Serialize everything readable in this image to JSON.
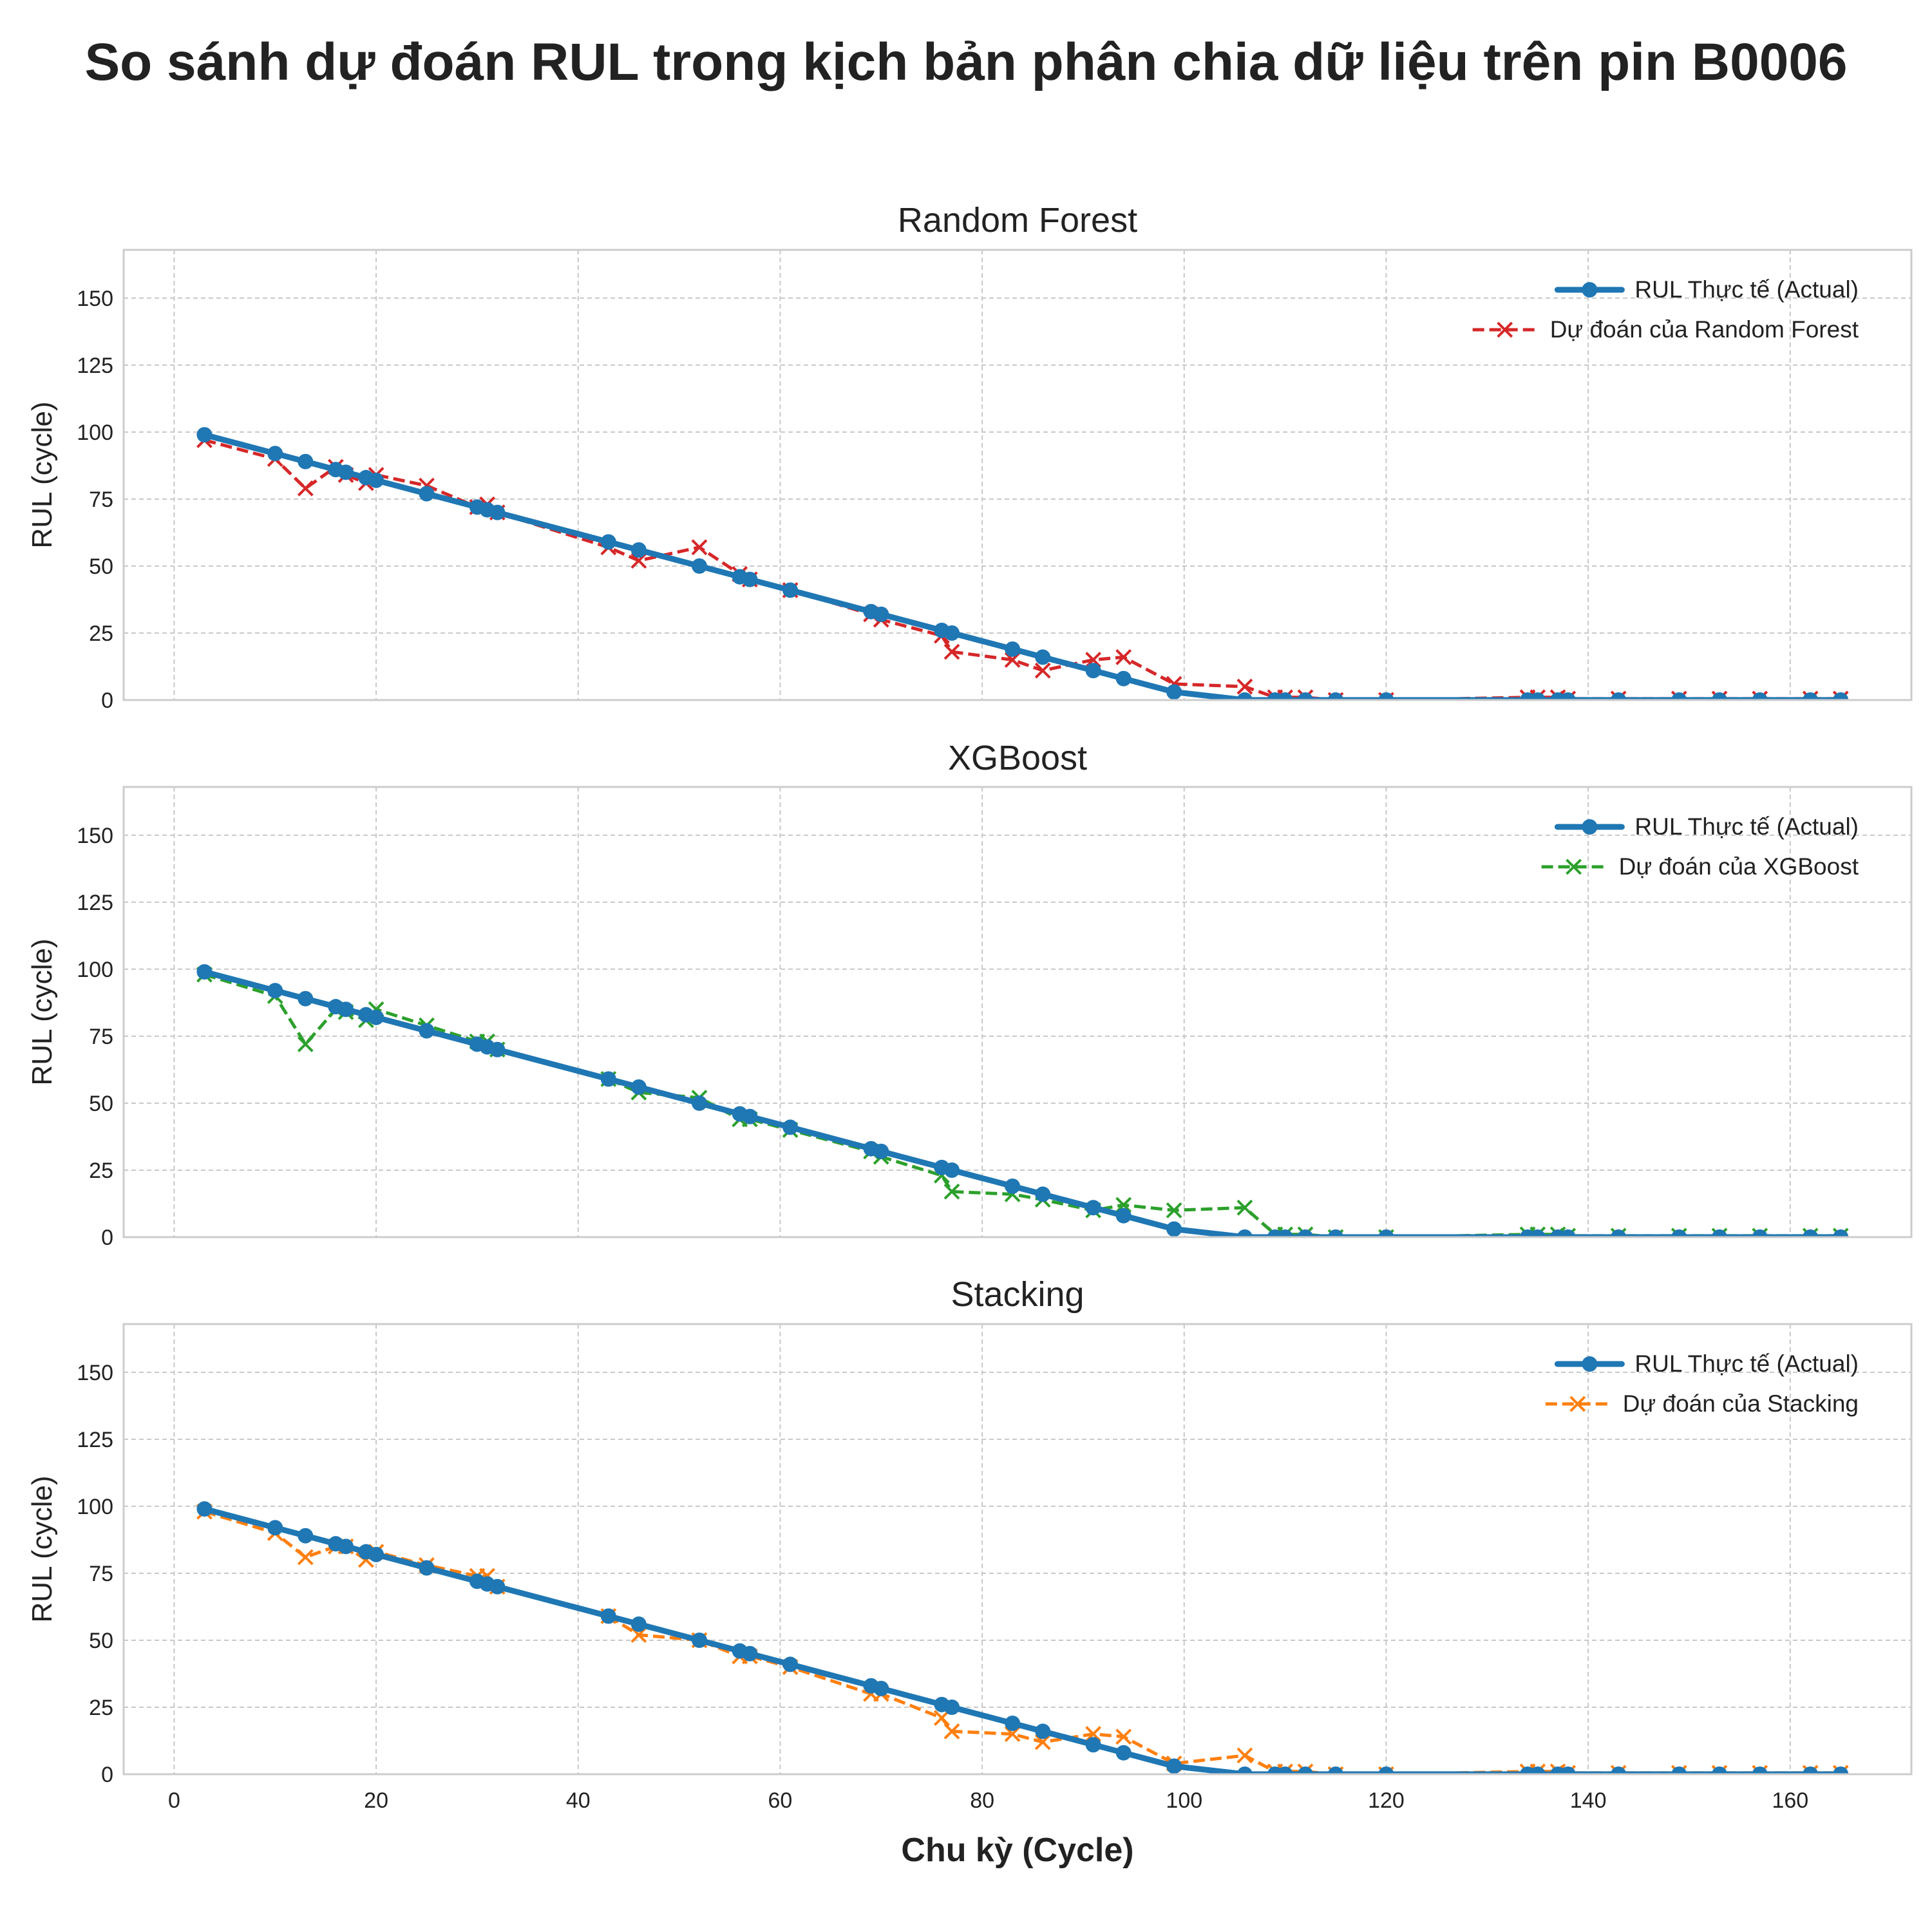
{
  "figure": {
    "title": "So sánh dự đoán RUL trong kịch bản phân chia dữ liệu trên pin B0006",
    "xlabel": "Chu kỳ (Cycle)"
  },
  "chart_data": [
    {
      "type": "line",
      "title": "Random Forest",
      "xlabel": "Chu kỳ (Cycle)",
      "ylabel": "RUL (cycle)",
      "xlim": [
        -5,
        172
      ],
      "ylim": [
        0,
        168
      ],
      "xticks": [
        0,
        20,
        40,
        60,
        80,
        100,
        120,
        140,
        160
      ],
      "yticks": [
        0,
        25,
        50,
        75,
        100,
        125,
        150
      ],
      "grid": true,
      "legend_position": "top-right",
      "x": [
        3,
        10,
        13,
        16,
        17,
        19,
        20,
        25,
        30,
        31,
        32,
        43,
        46,
        52,
        56,
        57,
        61,
        69,
        70,
        76,
        77,
        83,
        86,
        91,
        94,
        99,
        106,
        109,
        110,
        112,
        115,
        120,
        134,
        135,
        137,
        138,
        143,
        149,
        153,
        157,
        162,
        165
      ],
      "series": [
        {
          "name": "RUL Thực tế (Actual)",
          "color": "#1f77b4",
          "marker": "circle",
          "line": "solid",
          "values": [
            99,
            92,
            89,
            86,
            85,
            83,
            82,
            77,
            72,
            71,
            70,
            59,
            56,
            50,
            46,
            45,
            41,
            33,
            32,
            26,
            25,
            19,
            16,
            11,
            8,
            3,
            0,
            0,
            0,
            0,
            0,
            0,
            0,
            0,
            0,
            0,
            0,
            0,
            0,
            0,
            0,
            0
          ]
        },
        {
          "name": "Dự đoán của Random Forest",
          "color": "#d62728",
          "marker": "x",
          "line": "dashed",
          "values": [
            97,
            90,
            79,
            87,
            84,
            81,
            84,
            80,
            72,
            73,
            70,
            57,
            52,
            57,
            47,
            45,
            41,
            32,
            30,
            24,
            18,
            15,
            11,
            15,
            16,
            6,
            5,
            1,
            1,
            1,
            0,
            0,
            1,
            1,
            1,
            0.5,
            0.5,
            0.5,
            0.5,
            0.5,
            0.5,
            0.5
          ]
        }
      ]
    },
    {
      "type": "line",
      "title": "XGBoost",
      "xlabel": "Chu kỳ (Cycle)",
      "ylabel": "RUL (cycle)",
      "xlim": [
        -5,
        172
      ],
      "ylim": [
        0,
        168
      ],
      "xticks": [
        0,
        20,
        40,
        60,
        80,
        100,
        120,
        140,
        160
      ],
      "yticks": [
        0,
        25,
        50,
        75,
        100,
        125,
        150
      ],
      "grid": true,
      "legend_position": "top-right",
      "x": [
        3,
        10,
        13,
        16,
        17,
        19,
        20,
        25,
        30,
        31,
        32,
        43,
        46,
        52,
        56,
        57,
        61,
        69,
        70,
        76,
        77,
        83,
        86,
        91,
        94,
        99,
        106,
        109,
        110,
        112,
        115,
        120,
        134,
        135,
        137,
        138,
        143,
        149,
        153,
        157,
        162,
        165
      ],
      "series": [
        {
          "name": "RUL Thực tế (Actual)",
          "color": "#1f77b4",
          "marker": "circle",
          "line": "solid",
          "values": [
            99,
            92,
            89,
            86,
            85,
            83,
            82,
            77,
            72,
            71,
            70,
            59,
            56,
            50,
            46,
            45,
            41,
            33,
            32,
            26,
            25,
            19,
            16,
            11,
            8,
            3,
            0,
            0,
            0,
            0,
            0,
            0,
            0,
            0,
            0,
            0,
            0,
            0,
            0,
            0,
            0,
            0
          ]
        },
        {
          "name": "Dự đoán của XGBoost",
          "color": "#2ca02c",
          "marker": "x",
          "line": "dashed",
          "values": [
            98,
            90,
            72,
            85,
            84,
            81,
            85,
            79,
            73,
            73,
            70,
            59,
            54,
            52,
            44,
            44,
            40,
            32,
            30,
            23,
            17,
            16,
            14,
            10,
            12,
            10,
            11,
            1,
            1,
            1,
            0,
            0,
            1,
            1,
            1,
            0.5,
            0.5,
            0.5,
            0.5,
            0.5,
            0.5,
            0.5
          ]
        }
      ]
    },
    {
      "type": "line",
      "title": "Stacking",
      "xlabel": "Chu kỳ (Cycle)",
      "ylabel": "RUL (cycle)",
      "xlim": [
        -5,
        172
      ],
      "ylim": [
        0,
        168
      ],
      "xticks": [
        0,
        20,
        40,
        60,
        80,
        100,
        120,
        140,
        160
      ],
      "yticks": [
        0,
        25,
        50,
        75,
        100,
        125,
        150
      ],
      "grid": true,
      "legend_position": "top-right",
      "x": [
        3,
        10,
        13,
        16,
        17,
        19,
        20,
        25,
        30,
        31,
        32,
        43,
        46,
        52,
        56,
        57,
        61,
        69,
        70,
        76,
        77,
        83,
        86,
        91,
        94,
        99,
        106,
        109,
        110,
        112,
        115,
        120,
        134,
        135,
        137,
        138,
        143,
        149,
        153,
        157,
        162,
        165
      ],
      "series": [
        {
          "name": "RUL Thực tế (Actual)",
          "color": "#1f77b4",
          "marker": "circle",
          "line": "solid",
          "values": [
            99,
            92,
            89,
            86,
            85,
            83,
            82,
            77,
            72,
            71,
            70,
            59,
            56,
            50,
            46,
            45,
            41,
            33,
            32,
            26,
            25,
            19,
            16,
            11,
            8,
            3,
            0,
            0,
            0,
            0,
            0,
            0,
            0,
            0,
            0,
            0,
            0,
            0,
            0,
            0,
            0,
            0
          ]
        },
        {
          "name": "Dự đoán của Stacking",
          "color": "#ff7f0e",
          "marker": "x",
          "line": "dashed",
          "values": [
            98,
            90,
            81,
            85,
            85,
            80,
            83,
            78,
            74,
            74,
            70,
            59,
            52,
            50,
            44,
            44,
            40,
            30,
            30,
            21,
            16,
            15,
            12,
            15,
            14,
            4,
            7,
            1,
            1,
            1,
            0,
            0,
            1,
            1,
            1,
            0.5,
            0.5,
            0.5,
            0.5,
            0.5,
            0.5,
            0.5
          ]
        }
      ]
    }
  ]
}
